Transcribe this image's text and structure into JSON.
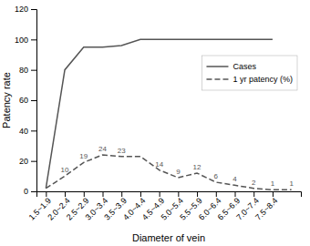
{
  "chart_data": {
    "type": "line",
    "categories": [
      "1.5~1.9",
      "2.0~2.4",
      "2.5~2.9",
      "3.0~3.4",
      "3.5~3.9",
      "4.0~4.4",
      "4.5~4.9",
      "5.0~5.4",
      "5.5~5.9",
      "6.0~6.4",
      "6.5~6.9",
      "7.0~7.4",
      "7.5~8.4",
      null
    ],
    "series": [
      {
        "name": "Cases",
        "color": "#555555",
        "line_style": "solid",
        "values": [
          2,
          80,
          95,
          95,
          96,
          100,
          100,
          100,
          100,
          100,
          100,
          100,
          100,
          null
        ]
      },
      {
        "name": "1 yr patency (%)",
        "color": "#555555",
        "line_style": "dashed",
        "values": [
          2,
          10,
          19,
          24,
          23,
          23,
          14,
          9,
          12,
          6,
          4,
          2,
          1,
          1
        ]
      }
    ],
    "xlabel": "Diameter of vein",
    "ylabel": "Patency rate",
    "ylim": [
      0,
      120
    ],
    "yticks": [
      0,
      20,
      40,
      60,
      80,
      100,
      120
    ],
    "grid": false,
    "legend": "right",
    "annotations": [
      {
        "x": 1,
        "y": 10,
        "text": "10"
      },
      {
        "x": 2,
        "y": 19,
        "text": "19"
      },
      {
        "x": 3,
        "y": 24,
        "text": "24"
      },
      {
        "x": 4,
        "y": 23,
        "text": "23"
      },
      {
        "x": 6,
        "y": 14,
        "text": "14"
      },
      {
        "x": 7,
        "y": 9,
        "text": "9"
      },
      {
        "x": 8,
        "y": 12,
        "text": "12"
      },
      {
        "x": 9,
        "y": 6,
        "text": "6"
      },
      {
        "x": 10,
        "y": 4,
        "text": "4"
      },
      {
        "x": 11,
        "y": 2,
        "text": "2"
      },
      {
        "x": 12,
        "y": 1,
        "text": "1"
      },
      {
        "x": 13,
        "y": 1,
        "text": "1"
      }
    ]
  }
}
